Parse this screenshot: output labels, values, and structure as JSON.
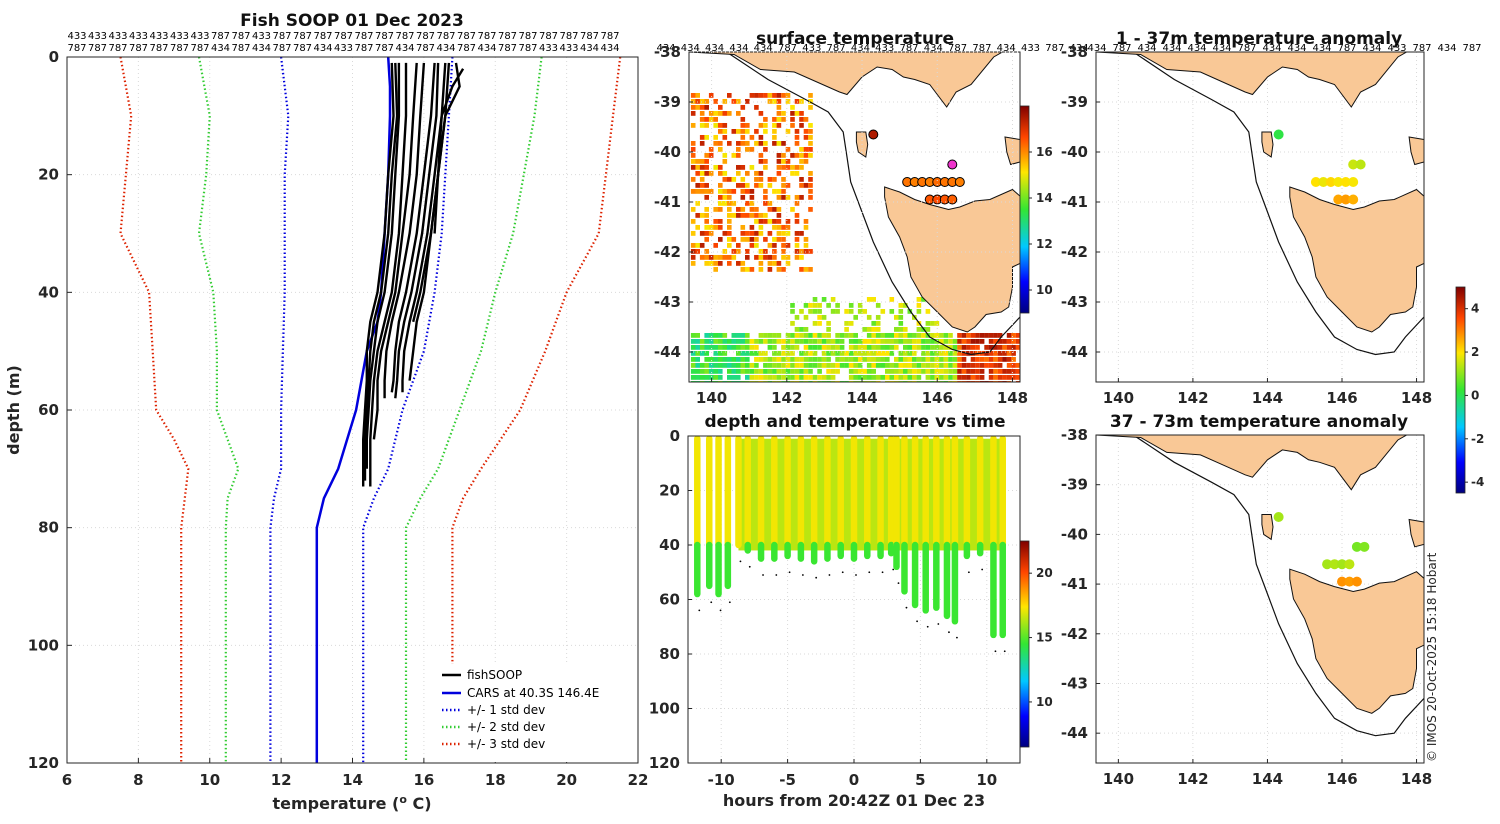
{
  "chart_data": [
    {
      "type": "line",
      "title": "Fish SOOP 01 Dec 2023",
      "xlabel": "temperature (o C)",
      "ylabel": "depth (m)",
      "xlim": [
        6,
        22
      ],
      "ylim": [
        0,
        120
      ],
      "x_ticks": [
        6,
        8,
        10,
        12,
        14,
        16,
        18,
        20,
        22
      ],
      "y_ticks": [
        0,
        20,
        40,
        60,
        80,
        100,
        120
      ],
      "top_labels_row1": [
        "433",
        "433",
        "433",
        "433",
        "433",
        "433",
        "433",
        "787",
        "787",
        "433",
        "787",
        "787",
        "787",
        "787",
        "787",
        "787",
        "787",
        "787",
        "787",
        "787",
        "787",
        "787",
        "787",
        "787",
        "787",
        "787",
        "787"
      ],
      "top_labels_row2": [
        "787",
        "787",
        "787",
        "787",
        "787",
        "787",
        "787",
        "434",
        "787",
        "434",
        "787",
        "787",
        "434",
        "433",
        "787",
        "787",
        "434",
        "787",
        "434",
        "787",
        "434",
        "787",
        "787",
        "433",
        "433",
        "434",
        "434"
      ],
      "legend": [
        "fishSOOP",
        "CARS at 40.3S 146.4E",
        "+/- 1 std dev",
        "+/- 2 std dev",
        "+/- 3 std dev"
      ],
      "series": [
        {
          "name": "CARS at 40.3S 146.4E",
          "color": "#0000dd",
          "style": "solid",
          "depth": [
            0,
            5,
            10,
            20,
            30,
            40,
            45,
            50,
            60,
            70,
            75,
            80,
            100,
            120
          ],
          "temp": [
            15.0,
            15.05,
            15.05,
            15.0,
            14.9,
            14.8,
            14.7,
            14.4,
            14.1,
            13.6,
            13.2,
            13.0,
            13.0,
            13.0
          ]
        },
        {
          "name": "+1 std dev",
          "color": "#0000dd",
          "style": "dotted",
          "depth": [
            0,
            10,
            20,
            30,
            40,
            50,
            55,
            60,
            70,
            75,
            80,
            100,
            120
          ],
          "temp": [
            16.8,
            16.7,
            16.6,
            16.5,
            16.3,
            16.0,
            15.7,
            15.4,
            15.0,
            14.6,
            14.3,
            14.3,
            14.3
          ]
        },
        {
          "name": "-1 std dev",
          "color": "#0000dd",
          "style": "dotted",
          "depth": [
            0,
            10,
            20,
            30,
            40,
            50,
            60,
            70,
            75,
            80,
            100,
            120
          ],
          "temp": [
            12.0,
            12.2,
            12.1,
            12.1,
            12.1,
            12.05,
            12.0,
            12.0,
            11.8,
            11.7,
            11.7,
            11.7
          ]
        },
        {
          "name": "+2 std dev",
          "color": "#33cc33",
          "style": "dotted",
          "depth": [
            0,
            10,
            20,
            30,
            40,
            50,
            60,
            70,
            75,
            80,
            100,
            120
          ],
          "temp": [
            19.3,
            19.1,
            18.8,
            18.5,
            18.0,
            17.6,
            17.0,
            16.4,
            15.9,
            15.5,
            15.5,
            15.5
          ]
        },
        {
          "name": "-2 std dev",
          "color": "#33cc33",
          "style": "dotted",
          "depth": [
            0,
            10,
            20,
            30,
            40,
            50,
            60,
            65,
            70,
            75,
            80,
            100,
            120
          ],
          "temp": [
            9.7,
            10.0,
            9.9,
            9.7,
            10.1,
            10.2,
            10.2,
            10.5,
            10.8,
            10.5,
            10.45,
            10.45,
            10.45
          ]
        },
        {
          "name": "+3 std dev",
          "color": "#dd2200",
          "style": "dotted",
          "depth": [
            0,
            10,
            20,
            30,
            40,
            50,
            60,
            70,
            75,
            80,
            100,
            120
          ],
          "temp": [
            21.5,
            21.3,
            21.1,
            20.9,
            20.0,
            19.4,
            18.7,
            17.6,
            17.1,
            16.8,
            16.8,
            16.8
          ]
        },
        {
          "name": "-3 std dev",
          "color": "#dd2200",
          "style": "dotted",
          "depth": [
            0,
            10,
            20,
            30,
            40,
            50,
            60,
            65,
            70,
            75,
            80,
            100,
            120
          ],
          "temp": [
            7.5,
            7.8,
            7.65,
            7.5,
            8.3,
            8.4,
            8.5,
            9.0,
            9.4,
            9.3,
            9.2,
            9.2,
            9.2
          ]
        }
      ],
      "profiles": [
        {
          "name": "fishSOOP",
          "depth": [
            1,
            10,
            20,
            30,
            40,
            45,
            50,
            55,
            60,
            65,
            70,
            73
          ],
          "temp": [
            15.1,
            15.15,
            15.0,
            14.9,
            14.7,
            14.5,
            14.4,
            14.4,
            14.35,
            14.3,
            14.3,
            14.3
          ]
        },
        {
          "name": "fishSOOP",
          "depth": [
            1,
            10,
            20,
            30,
            40,
            45,
            50,
            55,
            60,
            65,
            70,
            73
          ],
          "temp": [
            15.5,
            15.5,
            15.4,
            15.3,
            15.1,
            14.9,
            14.7,
            14.6,
            14.55,
            14.5,
            14.5,
            14.5
          ]
        },
        {
          "name": "fishSOOP",
          "depth": [
            1,
            10,
            20,
            30,
            40,
            45,
            50,
            55,
            58
          ],
          "temp": [
            16.0,
            15.9,
            15.8,
            15.6,
            15.3,
            15.1,
            14.95,
            14.9,
            14.9
          ]
        },
        {
          "name": "fishSOOP",
          "depth": [
            1,
            10,
            20,
            30,
            40,
            45,
            50,
            55,
            57
          ],
          "temp": [
            16.3,
            16.2,
            16.0,
            15.8,
            15.5,
            15.3,
            15.2,
            15.15,
            15.1
          ]
        },
        {
          "name": "fishSOOP",
          "depth": [
            1,
            10,
            20,
            30,
            40,
            45,
            50,
            55,
            57
          ],
          "temp": [
            16.6,
            16.5,
            16.3,
            16.1,
            15.8,
            15.6,
            15.45,
            15.4,
            15.4
          ]
        },
        {
          "name": "fishSOOP",
          "depth": [
            1,
            5,
            10,
            20,
            30,
            40,
            45,
            50,
            55
          ],
          "temp": [
            16.9,
            17.0,
            16.6,
            16.4,
            16.2,
            16.0,
            15.8,
            15.7,
            15.6
          ]
        },
        {
          "name": "fishSOOP",
          "depth": [
            2,
            5,
            10,
            20,
            30
          ],
          "temp": [
            17.1,
            16.8,
            16.5,
            16.4,
            16.3
          ]
        },
        {
          "name": "fishSOOP",
          "depth": [
            1,
            10,
            20,
            30,
            40,
            45,
            50,
            55,
            60,
            65,
            70
          ],
          "temp": [
            15.3,
            15.3,
            15.2,
            15.1,
            14.9,
            14.7,
            14.6,
            14.5,
            14.45,
            14.4,
            14.4
          ]
        },
        {
          "name": "fishSOOP",
          "depth": [
            1,
            10,
            20,
            30,
            40,
            45,
            50,
            55,
            60,
            65
          ],
          "temp": [
            15.8,
            15.7,
            15.6,
            15.4,
            15.2,
            15.0,
            14.8,
            14.7,
            14.7,
            14.6
          ]
        },
        {
          "name": "fishSOOP",
          "depth": [
            1,
            10,
            20,
            30,
            40,
            45,
            50,
            55,
            58
          ],
          "temp": [
            16.4,
            16.35,
            16.15,
            15.95,
            15.65,
            15.45,
            15.3,
            15.25,
            15.2
          ]
        },
        {
          "name": "fishSOOP",
          "depth": [
            1,
            10,
            20,
            30,
            40,
            45
          ],
          "temp": [
            16.7,
            16.6,
            16.4,
            16.2,
            15.9,
            15.7
          ]
        },
        {
          "name": "fishSOOP",
          "depth": [
            1,
            10,
            20,
            30,
            40,
            45,
            50,
            55,
            60,
            65,
            70,
            72
          ],
          "temp": [
            15.2,
            15.25,
            15.1,
            15.0,
            14.8,
            14.6,
            14.5,
            14.45,
            14.4,
            14.35,
            14.35,
            14.35
          ]
        }
      ]
    },
    {
      "type": "heatmap",
      "title": "surface temperature",
      "xlim": [
        139.4,
        148.2
      ],
      "ylim": [
        -44.6,
        -38.0
      ],
      "x_ticks": [
        140,
        142,
        144,
        146,
        148
      ],
      "y_ticks": [
        -38,
        -39,
        -40,
        -41,
        -42,
        -43,
        -44
      ],
      "colorbar_ticks": [
        10,
        12,
        14,
        16
      ],
      "colorbar_range": [
        9,
        18
      ],
      "top_labels": [
        "434",
        "434",
        "434",
        "434",
        "434",
        "787",
        "433",
        "787",
        "434",
        "433",
        "787",
        "434",
        "787",
        "787",
        "434",
        "433",
        "787",
        "434",
        "787",
        "434",
        "787",
        "787",
        "787",
        "433",
        "434",
        "787",
        "434",
        "434"
      ],
      "stations": [
        {
          "lon": 144.3,
          "lat": -39.65,
          "temp": 17.5
        },
        {
          "lon": 146.4,
          "lat": -40.25,
          "temp": 17.8
        },
        {
          "lon": 145.2,
          "lat": -40.6,
          "temp": 16.2
        },
        {
          "lon": 145.4,
          "lat": -40.6,
          "temp": 16.1
        },
        {
          "lon": 145.6,
          "lat": -40.6,
          "temp": 16.2
        },
        {
          "lon": 145.8,
          "lat": -40.6,
          "temp": 16.1
        },
        {
          "lon": 146.0,
          "lat": -40.6,
          "temp": 16.3
        },
        {
          "lon": 146.2,
          "lat": -40.6,
          "temp": 16.2
        },
        {
          "lon": 146.4,
          "lat": -40.6,
          "temp": 16.2
        },
        {
          "lon": 146.6,
          "lat": -40.6,
          "temp": 16.1
        },
        {
          "lon": 145.8,
          "lat": -40.95,
          "temp": 16.5
        },
        {
          "lon": 146.0,
          "lat": -40.95,
          "temp": 16.6
        },
        {
          "lon": 146.2,
          "lat": -40.95,
          "temp": 16.5
        },
        {
          "lon": 146.4,
          "lat": -40.95,
          "temp": 16.4
        }
      ]
    },
    {
      "type": "scatter",
      "title": "1 - 37m temperature anomaly",
      "xlim": [
        139.4,
        148.2
      ],
      "ylim": [
        -44.6,
        -38.0
      ],
      "x_ticks": [
        140,
        142,
        144,
        146,
        148
      ],
      "y_ticks": [
        -38,
        -39,
        -40,
        -41,
        -42,
        -43,
        -44
      ],
      "colorbar_ticks": [
        -4,
        -2,
        0,
        2,
        4
      ],
      "colorbar_range": [
        -4.5,
        5
      ],
      "top_labels": [
        "434",
        "787",
        "434",
        "434",
        "434",
        "434",
        "787",
        "434",
        "434",
        "434",
        "787",
        "434",
        "433",
        "787",
        "434",
        "787"
      ],
      "points": [
        {
          "lon": 144.3,
          "lat": -39.65,
          "anom": 0.1
        },
        {
          "lon": 146.3,
          "lat": -40.25,
          "anom": 1.5
        },
        {
          "lon": 146.5,
          "lat": -40.25,
          "anom": 1.4
        },
        {
          "lon": 145.3,
          "lat": -40.6,
          "anom": 2.0
        },
        {
          "lon": 145.5,
          "lat": -40.6,
          "anom": 1.8
        },
        {
          "lon": 145.7,
          "lat": -40.6,
          "anom": 2.1
        },
        {
          "lon": 145.9,
          "lat": -40.6,
          "anom": 1.9
        },
        {
          "lon": 146.1,
          "lat": -40.6,
          "anom": 2.0
        },
        {
          "lon": 146.3,
          "lat": -40.6,
          "anom": 1.9
        },
        {
          "lon": 145.9,
          "lat": -40.95,
          "anom": 2.6
        },
        {
          "lon": 146.1,
          "lat": -40.95,
          "anom": 2.7
        },
        {
          "lon": 146.3,
          "lat": -40.95,
          "anom": 2.5
        }
      ]
    },
    {
      "type": "scatter",
      "title": "37 - 73m temperature anomaly",
      "xlim": [
        139.4,
        148.2
      ],
      "ylim": [
        -44.6,
        -38.0
      ],
      "x_ticks": [
        140,
        142,
        144,
        146,
        148
      ],
      "y_ticks": [
        -38,
        -39,
        -40,
        -41,
        -42,
        -43,
        -44
      ],
      "points": [
        {
          "lon": 144.3,
          "lat": -39.65,
          "anom": 1.2
        },
        {
          "lon": 146.4,
          "lat": -40.25,
          "anom": 0.8
        },
        {
          "lon": 146.6,
          "lat": -40.25,
          "anom": 0.9
        },
        {
          "lon": 145.6,
          "lat": -40.6,
          "anom": 1.2
        },
        {
          "lon": 145.8,
          "lat": -40.6,
          "anom": 1.3
        },
        {
          "lon": 146.0,
          "lat": -40.6,
          "anom": 1.2
        },
        {
          "lon": 146.2,
          "lat": -40.6,
          "anom": 1.4
        },
        {
          "lon": 146.0,
          "lat": -40.95,
          "anom": 2.8
        },
        {
          "lon": 146.2,
          "lat": -40.95,
          "anom": 2.7
        },
        {
          "lon": 146.4,
          "lat": -40.95,
          "anom": 2.8
        }
      ]
    },
    {
      "type": "scatter",
      "title": "depth and temperature vs time",
      "xlabel": "hours from 20:42Z 01 Dec 23",
      "xlim": [
        -12.5,
        12.5
      ],
      "ylim": [
        0,
        120
      ],
      "x_ticks": [
        -10,
        -5,
        0,
        5,
        10
      ],
      "x_tick_labels": [
        "-10",
        "-5",
        "0",
        "5",
        "10"
      ],
      "y_ticks": [
        0,
        20,
        40,
        60,
        80,
        100,
        120
      ],
      "colorbar_ticks": [
        10,
        15,
        20
      ],
      "colorbar_range": [
        6.5,
        22.5
      ],
      "casts": [
        {
          "t": -11.8,
          "max_depth": 58
        },
        {
          "t": -10.9,
          "max_depth": 55
        },
        {
          "t": -10.2,
          "max_depth": 58
        },
        {
          "t": -9.5,
          "max_depth": 55
        },
        {
          "t": -8.7,
          "max_depth": 40
        },
        {
          "t": -8.0,
          "max_depth": 42
        },
        {
          "t": -7.0,
          "max_depth": 45
        },
        {
          "t": -6.0,
          "max_depth": 45
        },
        {
          "t": -5.0,
          "max_depth": 44
        },
        {
          "t": -4.0,
          "max_depth": 45
        },
        {
          "t": -3.0,
          "max_depth": 46
        },
        {
          "t": -2.0,
          "max_depth": 45
        },
        {
          "t": -1.0,
          "max_depth": 44
        },
        {
          "t": 0.0,
          "max_depth": 45
        },
        {
          "t": 1.0,
          "max_depth": 44
        },
        {
          "t": 2.0,
          "max_depth": 44
        },
        {
          "t": 2.8,
          "max_depth": 43
        },
        {
          "t": 3.2,
          "max_depth": 48
        },
        {
          "t": 3.8,
          "max_depth": 57
        },
        {
          "t": 4.6,
          "max_depth": 62
        },
        {
          "t": 5.4,
          "max_depth": 64
        },
        {
          "t": 6.2,
          "max_depth": 63
        },
        {
          "t": 7.0,
          "max_depth": 66
        },
        {
          "t": 7.6,
          "max_depth": 68
        },
        {
          "t": 8.5,
          "max_depth": 44
        },
        {
          "t": 9.5,
          "max_depth": 43
        },
        {
          "t": 10.5,
          "max_depth": 73
        },
        {
          "t": 11.2,
          "max_depth": 73
        }
      ]
    }
  ],
  "credit": "© IMOS 20-Oct-2025 15:18 Hobart",
  "colors": {
    "land": "#f9c896",
    "cars": "#0000dd",
    "std1": "#0000dd",
    "std2": "#33cc33",
    "std3": "#dd2200",
    "fish": "#000000"
  }
}
